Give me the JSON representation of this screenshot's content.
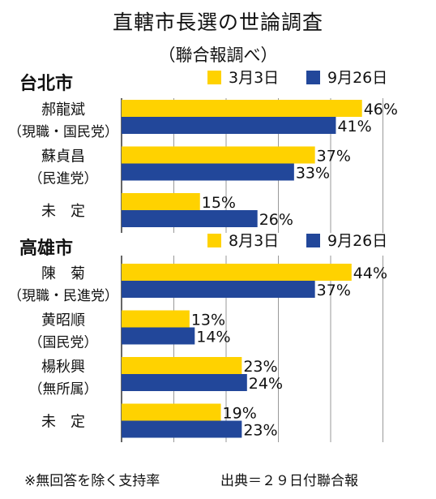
{
  "title": "直轄市長選の世論調査",
  "subtitle": "（聯合報調べ）",
  "footnote": "※無回答を除く支持率",
  "source": "出典＝２９日付聯合報",
  "colors": {
    "series_1": "#ffd200",
    "series_2": "#22479a",
    "axis": "#333333",
    "grid": "#999999"
  },
  "chart_data": [
    {
      "type": "bar",
      "orientation": "horizontal",
      "title": "台北市",
      "categories": [
        {
          "name": "郝龍斌",
          "note": "（現職・国民党）"
        },
        {
          "name": "蘇貞昌",
          "note": "（民進党）"
        },
        {
          "name": "未　定",
          "note": ""
        }
      ],
      "series": [
        {
          "name": "3月3日",
          "values": [
            46,
            37,
            15
          ],
          "labels": [
            "46%",
            "37%",
            "15%"
          ]
        },
        {
          "name": "9月26日",
          "values": [
            41,
            33,
            26
          ],
          "labels": [
            "41%",
            "33%",
            "26%"
          ]
        }
      ],
      "xlim": [
        0,
        50
      ],
      "legend": "top-right",
      "grid": true
    },
    {
      "type": "bar",
      "orientation": "horizontal",
      "title": "高雄市",
      "categories": [
        {
          "name": "陳　菊",
          "note": "（現職・民進党）"
        },
        {
          "name": "黄昭順",
          "note": "（国民党）"
        },
        {
          "name": "楊秋興",
          "note": "（無所属）"
        },
        {
          "name": "未　定",
          "note": ""
        }
      ],
      "series": [
        {
          "name": "8月3日",
          "values": [
            44,
            13,
            23,
            19
          ],
          "labels": [
            "44%",
            "13%",
            "23%",
            "19%"
          ]
        },
        {
          "name": "9月26日",
          "values": [
            37,
            14,
            24,
            23
          ],
          "labels": [
            "37%",
            "14%",
            "24%",
            "23%"
          ]
        }
      ],
      "xlim": [
        0,
        50
      ],
      "legend": "top-right",
      "grid": true
    }
  ]
}
